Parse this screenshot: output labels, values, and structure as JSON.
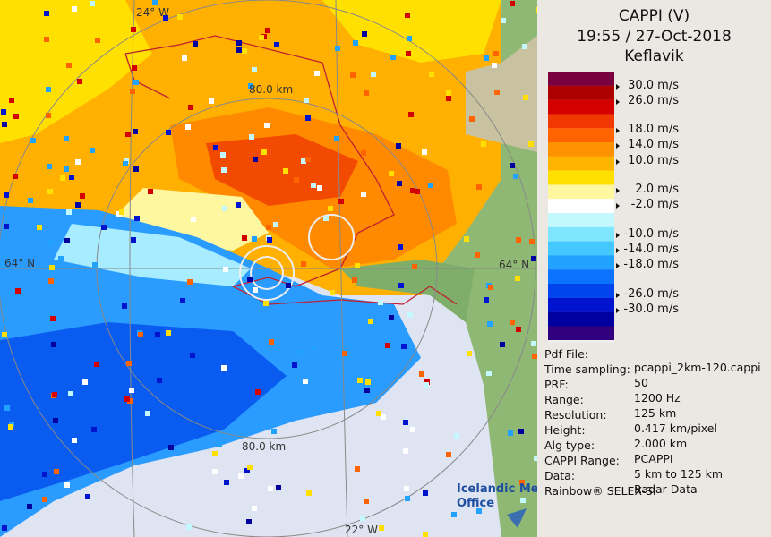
{
  "header": {
    "title": "CAPPI (V)",
    "datetime": "19:55 / 27-Oct-2018",
    "site": "Keflavik"
  },
  "legend": {
    "labels": [
      "30.0 m/s",
      "26.0 m/s",
      "18.0 m/s",
      "14.0 m/s",
      "10.0 m/s",
      "2.0 m/s",
      "-2.0 m/s",
      "-10.0 m/s",
      "-14.0 m/s",
      "-18.0 m/s",
      "-26.0 m/s",
      "-30.0 m/s"
    ]
  },
  "info": {
    "rows": [
      [
        "Pdf File:",
        "pcappi_2km-120.cappi"
      ],
      [
        "Time sampling:",
        "50"
      ],
      [
        "PRF:",
        "1200 Hz"
      ],
      [
        "Range:",
        "125 km"
      ],
      [
        "Resolution:",
        "0.417 km/pixel"
      ],
      [
        "Height:",
        "2.000 km"
      ],
      [
        "Alg type:",
        "PCAPPI"
      ],
      [
        "CAPPI Range:",
        "5 km to 125 km"
      ],
      [
        "Data:",
        "Radar Data"
      ]
    ],
    "footer": "Rainbow® SELEX-SI"
  },
  "map": {
    "lon_top": "24° W",
    "lon_bottom": "22° W",
    "lat_left": "64° N",
    "lat_right": "64° N",
    "ring_top": "80.0 km",
    "ring_bottom": "80.0 km",
    "logo_line1": "Icelandic Met",
    "logo_line2": "Office"
  }
}
